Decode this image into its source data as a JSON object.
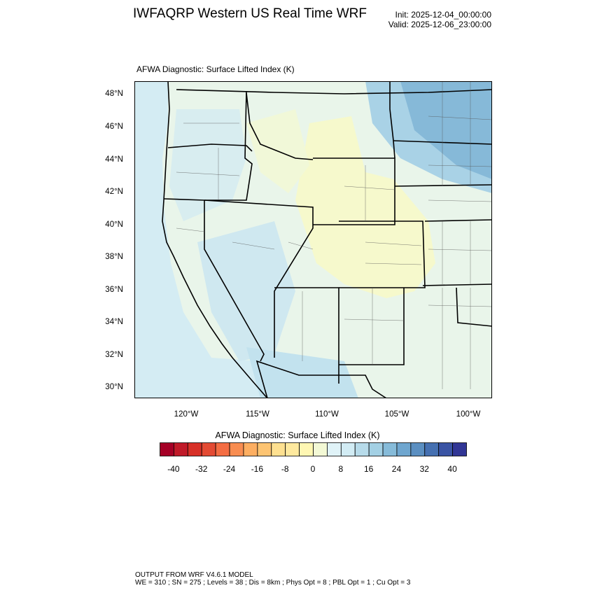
{
  "header": {
    "title": "IWFAQRP Western US Real Time WRF",
    "init": "Init: 2025-12-04_00:00:00",
    "valid": "Valid: 2025-12-06_23:00:00"
  },
  "plot": {
    "subtitle": "AFWA Diagnostic: Surface Lifted Index   (K)",
    "lat_labels": [
      "48°N",
      "46°N",
      "44°N",
      "42°N",
      "40°N",
      "38°N",
      "36°N",
      "34°N",
      "32°N",
      "30°N"
    ],
    "lon_labels": [
      "120°W",
      "115°W",
      "110°W",
      "105°W",
      "100°W"
    ],
    "colors": {
      "ocean": "#d4ecf3",
      "low_positive": "#e9f5ea",
      "near_zero": "#f6f9cc",
      "moderate": "#b8dcea",
      "high": "#86b9d8"
    }
  },
  "colorbar": {
    "title": "AFWA Diagnostic: Surface Lifted Index  (K)",
    "labels": [
      "-40",
      "-32",
      "-24",
      "-16",
      "-8",
      "0",
      "8",
      "16",
      "24",
      "32",
      "40"
    ],
    "colors": [
      "#a50026",
      "#c01a29",
      "#d73027",
      "#e34a33",
      "#f46d43",
      "#f88d51",
      "#fdae61",
      "#fdc472",
      "#fee090",
      "#fee99e",
      "#fff7b3",
      "#f3f9d5",
      "#e0f3f8",
      "#d2ecf4",
      "#b7dbea",
      "#a3d0e4",
      "#86bbd9",
      "#6fa6cf",
      "#5b8fc1",
      "#4570b1",
      "#3a54a4",
      "#313695"
    ]
  },
  "footer": {
    "line1": "OUTPUT FROM WRF V4.6.1 MODEL",
    "line2": "WE = 310 ; SN = 275 ; Levels = 38 ; Dis = 8km ; Phys Opt = 8 ; PBL Opt = 1 ; Cu Opt = 3"
  }
}
